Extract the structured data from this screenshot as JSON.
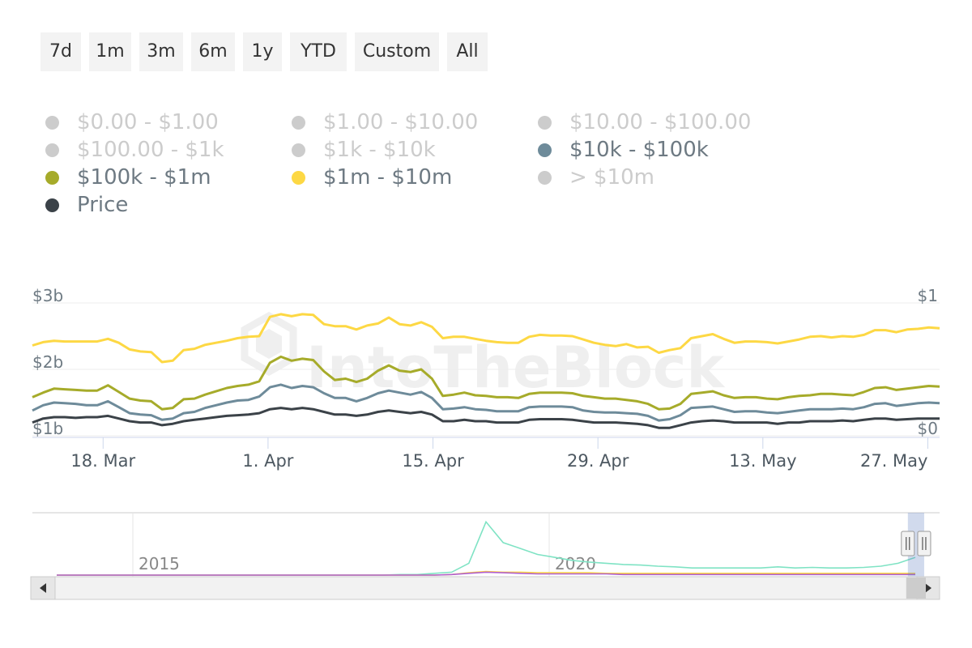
{
  "range_buttons": [
    "7d",
    "1m",
    "3m",
    "6m",
    "1y",
    "YTD",
    "Custom",
    "All"
  ],
  "legend": [
    {
      "label": "$0.00 - $1.00",
      "color": "#cccccc",
      "active": false
    },
    {
      "label": "$1.00 - $10.00",
      "color": "#cccccc",
      "active": false
    },
    {
      "label": "$10.00 - $100.00",
      "color": "#cccccc",
      "active": false
    },
    {
      "label": "$100.00 - $1k",
      "color": "#cccccc",
      "active": false
    },
    {
      "label": "$1k - $10k",
      "color": "#cccccc",
      "active": false
    },
    {
      "label": "$10k - $100k",
      "color": "#6e8b9a",
      "active": true
    },
    {
      "label": "$100k - $1m",
      "color": "#a6ab2a",
      "active": true
    },
    {
      "label": "$1m - $10m",
      "color": "#fdd844",
      "active": true
    },
    {
      "label": "> $10m",
      "color": "#cccccc",
      "active": false
    },
    {
      "label": "Price",
      "color": "#3b4248",
      "active": true
    }
  ],
  "watermark": "IntoTheBlock",
  "chart_data": {
    "type": "line",
    "x_start": "2024-03-12",
    "x_end": "2024-05-28",
    "x_tick_labels": [
      "18. Mar",
      "1. Apr",
      "15. Apr",
      "29. Apr",
      "13. May",
      "27. May"
    ],
    "ylim_left": [
      1,
      3
    ],
    "ylim_left_unit": "b",
    "y_left_tick_labels": [
      "$3b",
      "$2b",
      "$1b"
    ],
    "y_right_tick_labels": [
      "$1",
      "$0"
    ],
    "ylim_right": [
      0,
      1
    ],
    "grid": true,
    "legend_position": "top",
    "series": [
      {
        "name": "$1m - $10m",
        "color": "#fdd844",
        "axis": "left",
        "values": [
          2.36,
          2.41,
          2.43,
          2.42,
          2.42,
          2.42,
          2.42,
          2.46,
          2.4,
          2.3,
          2.27,
          2.26,
          2.11,
          2.13,
          2.29,
          2.31,
          2.37,
          2.4,
          2.43,
          2.47,
          2.49,
          2.5,
          2.79,
          2.83,
          2.8,
          2.83,
          2.82,
          2.68,
          2.65,
          2.65,
          2.6,
          2.66,
          2.69,
          2.78,
          2.68,
          2.66,
          2.71,
          2.64,
          2.47,
          2.49,
          2.49,
          2.46,
          2.43,
          2.41,
          2.4,
          2.4,
          2.49,
          2.52,
          2.51,
          2.51,
          2.5,
          2.45,
          2.4,
          2.37,
          2.35,
          2.38,
          2.33,
          2.34,
          2.25,
          2.29,
          2.32,
          2.47,
          2.5,
          2.53,
          2.46,
          2.4,
          2.42,
          2.42,
          2.41,
          2.39,
          2.42,
          2.45,
          2.49,
          2.5,
          2.48,
          2.5,
          2.49,
          2.52,
          2.59,
          2.59,
          2.56,
          2.6,
          2.61,
          2.63,
          2.62
        ]
      },
      {
        "name": "$100k - $1m",
        "color": "#a6ab2a",
        "axis": "left",
        "values": [
          1.58,
          1.65,
          1.71,
          1.7,
          1.69,
          1.68,
          1.68,
          1.76,
          1.66,
          1.56,
          1.53,
          1.52,
          1.4,
          1.42,
          1.55,
          1.56,
          1.62,
          1.67,
          1.72,
          1.75,
          1.77,
          1.82,
          2.1,
          2.19,
          2.13,
          2.16,
          2.14,
          1.97,
          1.84,
          1.86,
          1.81,
          1.86,
          1.98,
          2.06,
          1.98,
          1.96,
          2.0,
          1.86,
          1.6,
          1.62,
          1.65,
          1.61,
          1.6,
          1.58,
          1.58,
          1.57,
          1.63,
          1.65,
          1.65,
          1.65,
          1.64,
          1.6,
          1.58,
          1.56,
          1.56,
          1.54,
          1.52,
          1.48,
          1.4,
          1.41,
          1.48,
          1.63,
          1.65,
          1.67,
          1.61,
          1.57,
          1.58,
          1.58,
          1.56,
          1.55,
          1.58,
          1.6,
          1.61,
          1.63,
          1.63,
          1.62,
          1.61,
          1.66,
          1.72,
          1.73,
          1.69,
          1.71,
          1.73,
          1.75,
          1.74
        ]
      },
      {
        "name": "$10k - $100k",
        "color": "#6e8b9a",
        "axis": "left",
        "values": [
          1.38,
          1.46,
          1.5,
          1.49,
          1.48,
          1.46,
          1.46,
          1.52,
          1.43,
          1.34,
          1.32,
          1.31,
          1.24,
          1.26,
          1.34,
          1.36,
          1.42,
          1.46,
          1.5,
          1.53,
          1.54,
          1.59,
          1.73,
          1.77,
          1.72,
          1.75,
          1.73,
          1.64,
          1.57,
          1.57,
          1.52,
          1.57,
          1.64,
          1.68,
          1.65,
          1.62,
          1.66,
          1.57,
          1.4,
          1.41,
          1.43,
          1.4,
          1.39,
          1.37,
          1.37,
          1.37,
          1.43,
          1.44,
          1.44,
          1.44,
          1.43,
          1.38,
          1.36,
          1.35,
          1.35,
          1.34,
          1.33,
          1.3,
          1.23,
          1.25,
          1.31,
          1.42,
          1.43,
          1.44,
          1.4,
          1.36,
          1.37,
          1.37,
          1.35,
          1.34,
          1.36,
          1.38,
          1.4,
          1.4,
          1.4,
          1.41,
          1.4,
          1.43,
          1.48,
          1.49,
          1.45,
          1.47,
          1.49,
          1.5,
          1.49
        ]
      }
    ],
    "price_series": {
      "name": "Price",
      "color": "#3b4248",
      "axis": "right",
      "values": [
        0.1,
        0.13,
        0.14,
        0.14,
        0.135,
        0.14,
        0.14,
        0.15,
        0.13,
        0.11,
        0.1,
        0.1,
        0.08,
        0.09,
        0.11,
        0.12,
        0.13,
        0.14,
        0.15,
        0.155,
        0.16,
        0.17,
        0.2,
        0.21,
        0.2,
        0.21,
        0.2,
        0.18,
        0.16,
        0.16,
        0.15,
        0.16,
        0.18,
        0.19,
        0.18,
        0.17,
        0.18,
        0.16,
        0.11,
        0.11,
        0.12,
        0.11,
        0.11,
        0.1,
        0.1,
        0.1,
        0.12,
        0.125,
        0.125,
        0.125,
        0.12,
        0.11,
        0.1,
        0.1,
        0.1,
        0.095,
        0.09,
        0.08,
        0.06,
        0.06,
        0.08,
        0.1,
        0.11,
        0.115,
        0.11,
        0.1,
        0.1,
        0.1,
        0.1,
        0.09,
        0.1,
        0.1,
        0.11,
        0.11,
        0.11,
        0.115,
        0.11,
        0.12,
        0.13,
        0.13,
        0.12,
        0.125,
        0.13,
        0.13,
        0.13
      ]
    },
    "navigator": {
      "x_tick_labels": [
        "2015",
        "2020"
      ],
      "series": [
        {
          "color": "#7fe3c4",
          "values": [
            0,
            0,
            0,
            0,
            0,
            0,
            0,
            0,
            0,
            0,
            0,
            0,
            0,
            0,
            0,
            0,
            0,
            0,
            0,
            0,
            0.01,
            0.01,
            0.03,
            0.05,
            0.2,
            0.9,
            0.55,
            0.45,
            0.35,
            0.3,
            0.25,
            0.22,
            0.2,
            0.18,
            0.17,
            0.15,
            0.14,
            0.12,
            0.12,
            0.12,
            0.12,
            0.12,
            0.14,
            0.12,
            0.13,
            0.12,
            0.12,
            0.13,
            0.15,
            0.2,
            0.3
          ]
        },
        {
          "color": "#fdd844",
          "values": [
            0,
            0,
            0,
            0,
            0,
            0,
            0,
            0,
            0,
            0,
            0,
            0,
            0,
            0,
            0,
            0,
            0,
            0,
            0,
            0,
            0,
            0,
            0,
            0.01,
            0.04,
            0.06,
            0.05,
            0.05,
            0.04,
            0.04,
            0.04,
            0.04,
            0.03,
            0.03,
            0.03,
            0.03,
            0.03,
            0.03,
            0.03,
            0.03,
            0.03,
            0.03,
            0.03,
            0.03,
            0.03,
            0.03,
            0.03,
            0.03,
            0.03,
            0.03,
            0.03
          ]
        },
        {
          "color": "#b05fd0",
          "values": [
            0,
            0,
            0,
            0,
            0,
            0,
            0,
            0,
            0,
            0,
            0,
            0,
            0,
            0,
            0,
            0,
            0,
            0,
            0,
            0,
            0,
            0,
            0,
            0.01,
            0.03,
            0.05,
            0.04,
            0.03,
            0.02,
            0.02,
            0.02,
            0.02,
            0.02,
            0.01,
            0.01,
            0.01,
            0.01,
            0.01,
            0.01,
            0.01,
            0.01,
            0.01,
            0.01,
            0.01,
            0.01,
            0.01,
            0.01,
            0.01,
            0.01,
            0.01,
            0.01
          ]
        }
      ],
      "selection_start": 0.965,
      "selection_end": 0.983
    }
  }
}
